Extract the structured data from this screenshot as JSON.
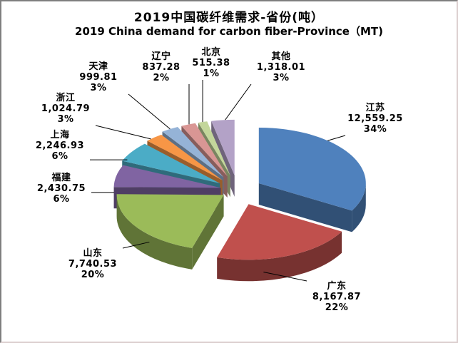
{
  "title": {
    "line1": "2019中国碳纤维需求-省份(吨）",
    "line2": "2019 China demand for carbon fiber-Province（MT)"
  },
  "chart_data": {
    "type": "pie",
    "style": "3d-exploded",
    "unit_label": "吨 / MT",
    "legend": "none",
    "direction": "clockwise",
    "start_angle_deg": 0,
    "slices": [
      {
        "name": "江苏",
        "value": 12559.25,
        "value_label": "12,559.25",
        "pct_label": "34%",
        "color": "#4F81BD"
      },
      {
        "name": "广东",
        "value": 8167.87,
        "value_label": "8,167.87",
        "pct_label": "22%",
        "color": "#C0504D"
      },
      {
        "name": "山东",
        "value": 7740.53,
        "value_label": "7,740.53",
        "pct_label": "20%",
        "color": "#9BBB59"
      },
      {
        "name": "福建",
        "value": 2430.75,
        "value_label": "2,430.75",
        "pct_label": "6%",
        "color": "#8064A2"
      },
      {
        "name": "上海",
        "value": 2246.93,
        "value_label": "2,246.93",
        "pct_label": "6%",
        "color": "#4BACC6"
      },
      {
        "name": "浙江",
        "value": 1024.79,
        "value_label": "1,024.79",
        "pct_label": "3%",
        "color": "#F79646"
      },
      {
        "name": "天津",
        "value": 999.81,
        "value_label": "999.81",
        "pct_label": "3%",
        "color": "#95B3D7"
      },
      {
        "name": "辽宁",
        "value": 837.28,
        "value_label": "837.28",
        "pct_label": "2%",
        "color": "#D99694"
      },
      {
        "name": "北京",
        "value": 515.38,
        "value_label": "515.38",
        "pct_label": "1%",
        "color": "#C3D69B"
      },
      {
        "name": "其他",
        "value": 1318.01,
        "value_label": "1,318.01",
        "pct_label": "3%",
        "color": "#B3A2C7"
      }
    ]
  }
}
